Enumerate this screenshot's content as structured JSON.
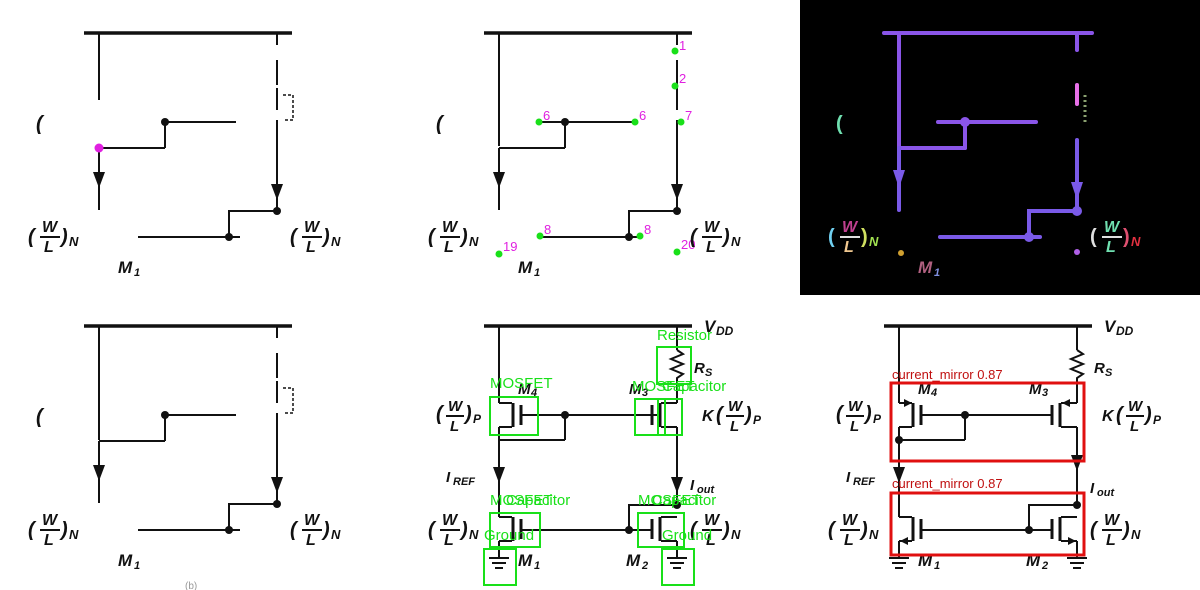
{
  "labels": {
    "vdd": "V",
    "vdd_sub": "DD",
    "rs": "R",
    "rs_sub": "S",
    "m1": "M",
    "m1_sub": "1",
    "m2": "M",
    "m2_sub": "2",
    "m3": "M",
    "m3_sub": "3",
    "m4": "M",
    "m4_sub": "4",
    "iref": "I",
    "iref_sub": "REF",
    "iout": "I",
    "iout_sub": "out",
    "wl_num": "W",
    "wl_den": "L",
    "sub_n": "N",
    "sub_p": "P",
    "k": "K",
    "open_paren": "(",
    "close_paren": ")",
    "caption": "(b)"
  },
  "keypoints": [
    "1",
    "2",
    "6",
    "6",
    "7",
    "8",
    "8",
    "19",
    "20"
  ],
  "detections": {
    "resistor": "Resistor",
    "mosfet": "MOSFET",
    "ground": "Ground",
    "capacitor": "Capacitor"
  },
  "groups": [
    {
      "label": "current_mirror",
      "score": "0.87"
    },
    {
      "label": "current_mirror",
      "score": "0.87"
    }
  ],
  "colors": {
    "ink": "#111111",
    "keypoint": "#e020e0",
    "keypoint_dot": "#19e019",
    "detection": "#19e019",
    "group_box": "#e01010",
    "segment": "#8a55e8",
    "background_dark": "#000000"
  }
}
